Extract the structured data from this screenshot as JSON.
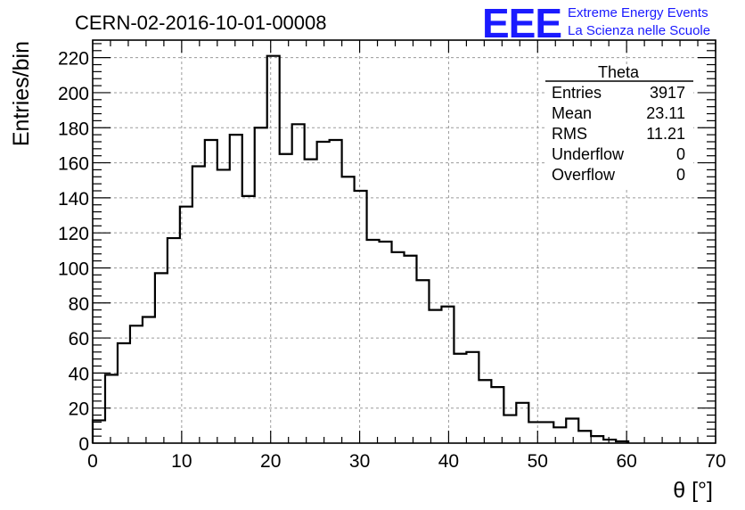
{
  "header": {
    "run_title": "CERN-02-2016-10-01-00008",
    "logo_text": "EEE",
    "logo_line1": "Extreme Energy Events",
    "logo_line2": "La Scienza nelle Scuole",
    "brand_color": "#1a1aff"
  },
  "stats_box": {
    "name": "Theta",
    "rows": [
      {
        "label": "Entries",
        "value": "3917"
      },
      {
        "label": "Mean",
        "value": "23.11"
      },
      {
        "label": "RMS",
        "value": "11.21"
      },
      {
        "label": "Underflow",
        "value": "0"
      },
      {
        "label": "Overflow",
        "value": "0"
      }
    ]
  },
  "chart_data": {
    "type": "bar",
    "histogram": true,
    "title": "CERN-02-2016-10-01-00008",
    "xlabel": "θ [°]",
    "ylabel": "Entries/bin",
    "xlim": [
      0,
      70
    ],
    "ylim": [
      0,
      230
    ],
    "bin_width": 1.4,
    "grid": true,
    "xticks": [
      0,
      10,
      20,
      30,
      40,
      50,
      60,
      70
    ],
    "yticks": [
      0,
      20,
      40,
      60,
      80,
      100,
      120,
      140,
      160,
      180,
      200,
      220
    ],
    "bin_edges": [
      0,
      1.4,
      2.8,
      4.2,
      5.6,
      7,
      8.4,
      9.8,
      11.2,
      12.6,
      14,
      15.4,
      16.8,
      18.2,
      19.6,
      21,
      22.4,
      23.8,
      25.2,
      26.6,
      28,
      29.4,
      30.8,
      32.2,
      33.6,
      35,
      36.4,
      37.8,
      39.2,
      40.6,
      42,
      43.4,
      44.8,
      46.2,
      47.6,
      49,
      50.4,
      51.8,
      53.2,
      54.6,
      56,
      57.4,
      58.8,
      60.2
    ],
    "values": [
      13,
      39,
      57,
      67,
      72,
      97,
      117,
      135,
      158,
      173,
      156,
      176,
      141,
      180,
      221,
      165,
      182,
      162,
      172,
      173,
      152,
      144,
      116,
      115,
      109,
      107,
      93,
      76,
      78,
      51,
      52,
      36,
      32,
      16,
      23,
      12,
      12,
      9,
      14,
      7,
      4,
      2,
      1
    ]
  }
}
